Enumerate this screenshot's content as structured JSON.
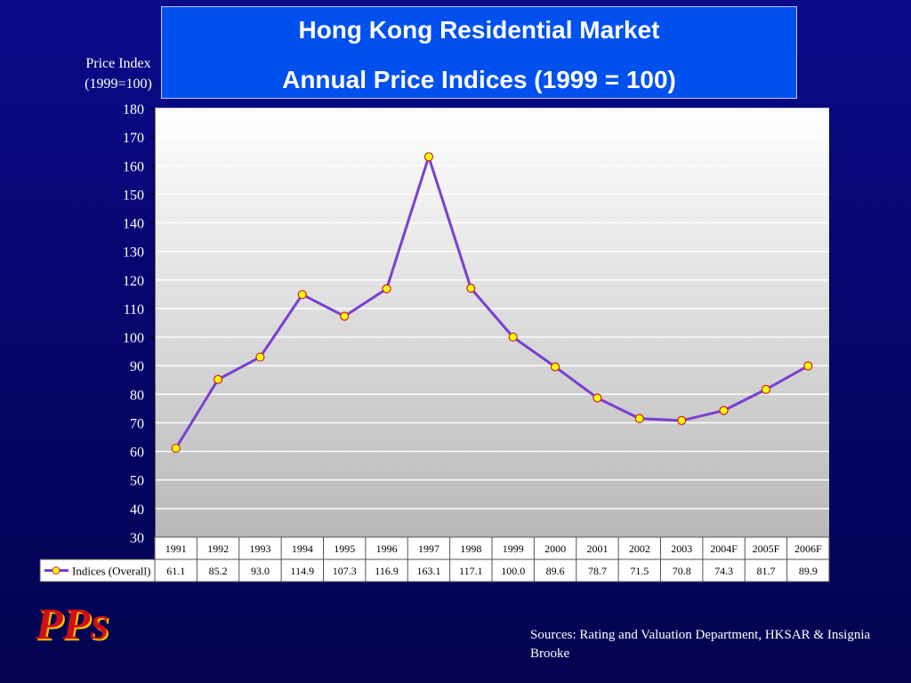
{
  "title": {
    "line1": "Hong Kong Residential Market",
    "line2": "Annual Price Indices  (1999 = 100)"
  },
  "y_axis_label": {
    "line1": "Price Index",
    "line2": "(1999=100)"
  },
  "sources": "Sources: Rating and Valuation Department, HKSAR & Insignia Brooke",
  "logo": {
    "letters": [
      "P",
      "P",
      "S"
    ]
  },
  "colors": {
    "background": "#06066e",
    "title_box": "#0050f0",
    "line": "#7a3fd0",
    "marker_fill": "#ffff00",
    "marker_stroke": "#d02020",
    "logo": "#d01010"
  },
  "chart_data": {
    "type": "line",
    "categories": [
      "1991",
      "1992",
      "1993",
      "1994",
      "1995",
      "1996",
      "1997",
      "1998",
      "1999",
      "2000",
      "2001",
      "2002",
      "2003",
      "2004F",
      "2005F",
      "2006F"
    ],
    "series": [
      {
        "name": "Indices (Overall)",
        "values": [
          61.1,
          85.2,
          93.0,
          114.9,
          107.3,
          116.9,
          163.1,
          117.1,
          100.0,
          89.6,
          78.7,
          71.5,
          70.8,
          74.3,
          81.7,
          89.9
        ],
        "value_labels": [
          "61.1",
          "85.2",
          "93.0",
          "114.9",
          "107.3",
          "116.9",
          "163.1",
          "117.1",
          "100.0",
          "89.6",
          "78.7",
          "71.5",
          "70.8",
          "74.3",
          "81.7",
          "89.9"
        ]
      }
    ],
    "ylim": [
      30,
      180
    ],
    "yticks": [
      30,
      40,
      50,
      60,
      70,
      80,
      90,
      100,
      110,
      120,
      130,
      140,
      150,
      160,
      170,
      180
    ],
    "grid": true,
    "legend": "data-table-bottom"
  }
}
